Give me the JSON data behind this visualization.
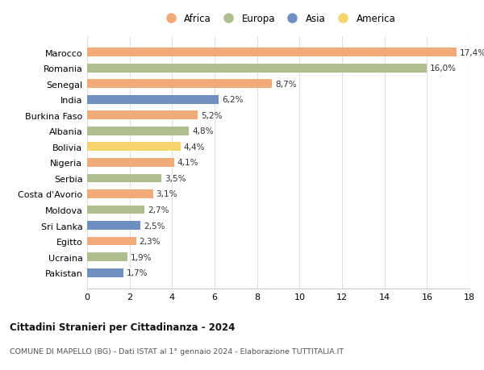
{
  "countries": [
    "Marocco",
    "Romania",
    "Senegal",
    "India",
    "Burkina Faso",
    "Albania",
    "Bolivia",
    "Nigeria",
    "Serbia",
    "Costa d'Avorio",
    "Moldova",
    "Sri Lanka",
    "Egitto",
    "Ucraina",
    "Pakistan"
  ],
  "values": [
    17.4,
    16.0,
    8.7,
    6.2,
    5.2,
    4.8,
    4.4,
    4.1,
    3.5,
    3.1,
    2.7,
    2.5,
    2.3,
    1.9,
    1.7
  ],
  "labels": [
    "17,4%",
    "16,0%",
    "8,7%",
    "6,2%",
    "5,2%",
    "4,8%",
    "4,4%",
    "4,1%",
    "3,5%",
    "3,1%",
    "2,7%",
    "2,5%",
    "2,3%",
    "1,9%",
    "1,7%"
  ],
  "continents": [
    "Africa",
    "Europa",
    "Africa",
    "Asia",
    "Africa",
    "Europa",
    "America",
    "Africa",
    "Europa",
    "Africa",
    "Europa",
    "Asia",
    "Africa",
    "Europa",
    "Asia"
  ],
  "colors": {
    "Africa": "#F2AA78",
    "Europa": "#AEBE8C",
    "Asia": "#6E8FBF",
    "America": "#F5D46E"
  },
  "legend_order": [
    "Africa",
    "Europa",
    "Asia",
    "America"
  ],
  "xlim": [
    0,
    18
  ],
  "xticks": [
    0,
    2,
    4,
    6,
    8,
    10,
    12,
    14,
    16,
    18
  ],
  "title": "Cittadini Stranieri per Cittadinanza - 2024",
  "subtitle": "COMUNE DI MAPELLO (BG) - Dati ISTAT al 1° gennaio 2024 - Elaborazione TUTTITALIA.IT",
  "background_color": "#ffffff",
  "bar_height": 0.55,
  "grid_color": "#e0e0e0"
}
